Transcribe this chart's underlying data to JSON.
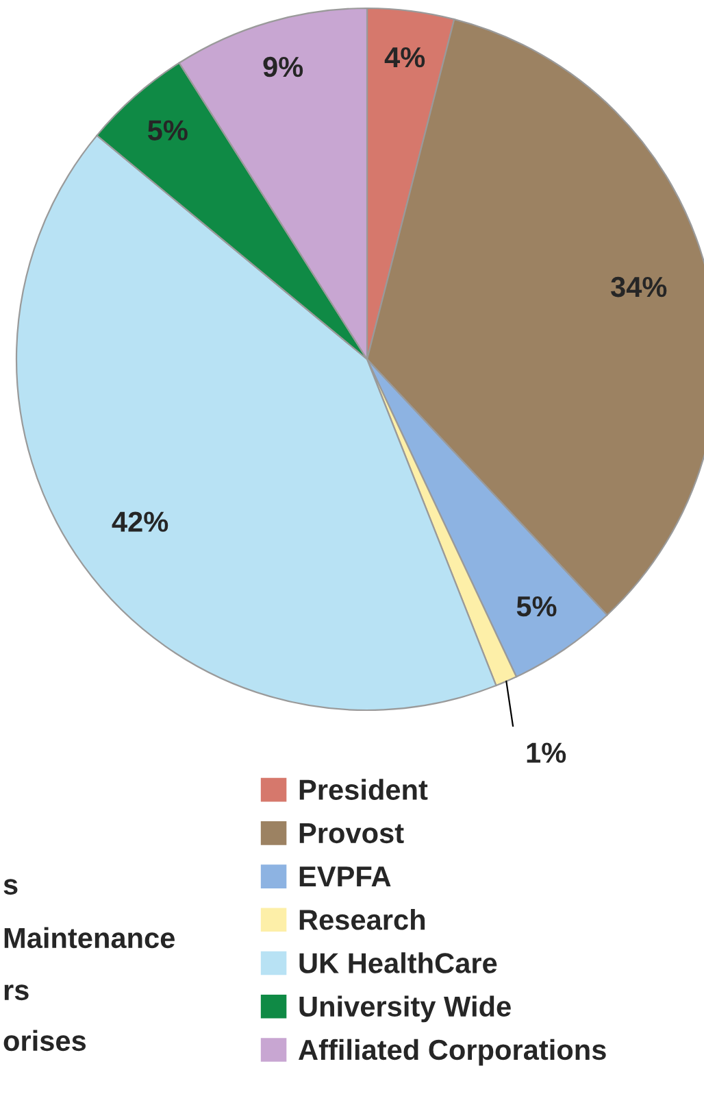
{
  "chart_data": {
    "type": "pie",
    "categories": [
      "President",
      "Provost",
      "EVPFA",
      "Research",
      "UK HealthCare",
      "University Wide",
      "Affiliated Corporations"
    ],
    "values": [
      4,
      34,
      5,
      1,
      42,
      5,
      9
    ],
    "colors": [
      "#d6786c",
      "#9c8262",
      "#8db3e2",
      "#fdefa8",
      "#b8e2f4",
      "#0f8a45",
      "#c8a6d2"
    ],
    "value_labels": [
      "4%",
      "34%",
      "5%",
      "1%",
      "42%",
      "5%",
      "9%"
    ],
    "legend": "bottom",
    "annotations": [
      "s",
      "Maintenance",
      "rs",
      "orises"
    ]
  }
}
